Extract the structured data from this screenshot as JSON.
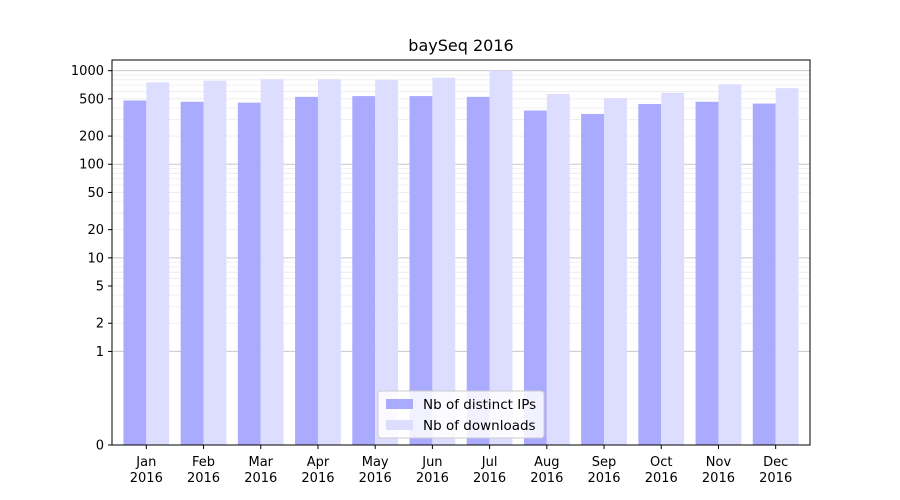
{
  "chart_data": {
    "type": "bar",
    "title": "baySeq 2016",
    "xlabel": "",
    "ylabel": "",
    "yscale": "symlog",
    "ylim": [
      0,
      1300
    ],
    "yticks": [
      0,
      1,
      2,
      5,
      10,
      20,
      50,
      100,
      200,
      500,
      1000
    ],
    "ytick_labels": [
      "0",
      "1",
      "2",
      "5",
      "10",
      "20",
      "50",
      "100",
      "200",
      "500",
      "1000"
    ],
    "grid": true,
    "legend_position": "bottom-center",
    "categories": [
      [
        "Jan",
        "2016"
      ],
      [
        "Feb",
        "2016"
      ],
      [
        "Mar",
        "2016"
      ],
      [
        "Apr",
        "2016"
      ],
      [
        "May",
        "2016"
      ],
      [
        "Jun",
        "2016"
      ],
      [
        "Jul",
        "2016"
      ],
      [
        "Aug",
        "2016"
      ],
      [
        "Sep",
        "2016"
      ],
      [
        "Oct",
        "2016"
      ],
      [
        "Nov",
        "2016"
      ],
      [
        "Dec",
        "2016"
      ]
    ],
    "series": [
      {
        "name": "Nb of distinct IPs",
        "color": "#aaaaff",
        "values": [
          480,
          465,
          455,
          525,
          535,
          535,
          525,
          375,
          345,
          440,
          465,
          445
        ]
      },
      {
        "name": "Nb of downloads",
        "color": "#ddddff",
        "values": [
          750,
          780,
          810,
          810,
          800,
          840,
          1000,
          565,
          510,
          580,
          715,
          650
        ]
      }
    ]
  }
}
